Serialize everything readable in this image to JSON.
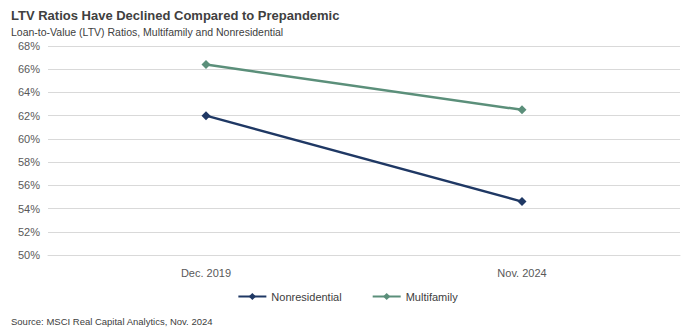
{
  "chart_data": {
    "type": "line",
    "title": "LTV Ratios Have Declined Compared to Prepandemic",
    "subtitle": "Loan-to-Value (LTV) Ratios, Multifamily and Nonresidential",
    "source": "Source: MSCI Real Capital Analytics, Nov. 2024",
    "categories": [
      "Dec. 2019",
      "Nov. 2024"
    ],
    "series": [
      {
        "name": "Nonresidential",
        "color": "#1f3864",
        "values": [
          62.0,
          54.6
        ]
      },
      {
        "name": "Multifamily",
        "color": "#5b8f7a",
        "values": [
          66.4,
          62.5
        ]
      }
    ],
    "ylim": [
      50,
      68
    ],
    "yticks": [
      {
        "value": 50,
        "label": "50%"
      },
      {
        "value": 52,
        "label": "52%"
      },
      {
        "value": 54,
        "label": "54%"
      },
      {
        "value": 56,
        "label": "56%"
      },
      {
        "value": 58,
        "label": "58%"
      },
      {
        "value": 60,
        "label": "60%"
      },
      {
        "value": 62,
        "label": "62%"
      },
      {
        "value": 64,
        "label": "64%"
      },
      {
        "value": 66,
        "label": "66%"
      },
      {
        "value": 68,
        "label": "68%"
      }
    ],
    "grid": true,
    "legend": "bottom",
    "marker": "diamond"
  }
}
